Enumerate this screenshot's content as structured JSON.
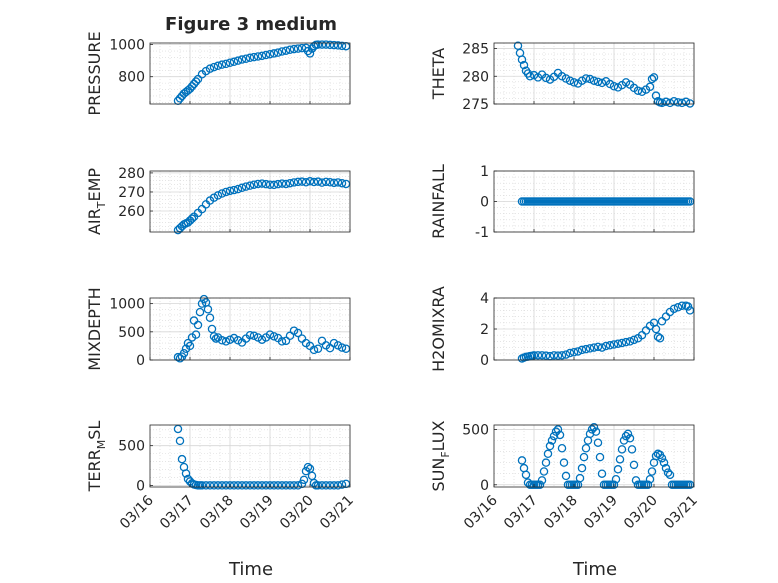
{
  "figure": {
    "title": "Figure 3 medium"
  },
  "chart_data": [
    {
      "type": "scatter",
      "ylabel": "PRESSURE",
      "ylabel_sub": "",
      "ylabel_tail": "",
      "ylim": [
        630,
        1010
      ],
      "yticks": [
        800,
        1000
      ],
      "xlim": [
        0,
        5
      ],
      "grid": true,
      "marker": "open-circle",
      "color": "#0072BD",
      "x": [
        0.7,
        0.75,
        0.8,
        0.85,
        0.9,
        0.95,
        1.0,
        1.05,
        1.1,
        1.15,
        1.2,
        1.3,
        1.4,
        1.5,
        1.6,
        1.7,
        1.8,
        1.9,
        2.0,
        2.1,
        2.2,
        2.3,
        2.4,
        2.5,
        2.6,
        2.7,
        2.8,
        2.9,
        3.0,
        3.1,
        3.2,
        3.3,
        3.4,
        3.5,
        3.6,
        3.7,
        3.8,
        3.9,
        3.95,
        4.0,
        4.05,
        4.1,
        4.15,
        4.2,
        4.3,
        4.4,
        4.5,
        4.6,
        4.7,
        4.8,
        4.9
      ],
      "y": [
        650,
        665,
        680,
        695,
        705,
        715,
        725,
        740,
        755,
        770,
        785,
        815,
        835,
        850,
        860,
        868,
        875,
        880,
        887,
        893,
        900,
        907,
        912,
        918,
        922,
        926,
        930,
        935,
        940,
        945,
        950,
        957,
        962,
        968,
        972,
        975,
        978,
        980,
        960,
        945,
        975,
        990,
        998,
        1000,
        1000,
        1000,
        998,
        997,
        995,
        992,
        990
      ]
    },
    {
      "type": "scatter",
      "ylabel": "THETA",
      "ylabel_sub": "",
      "ylabel_tail": "",
      "ylim": [
        275,
        286
      ],
      "yticks": [
        275,
        280,
        285
      ],
      "xlim": [
        0,
        5
      ],
      "grid": true,
      "marker": "open-circle",
      "color": "#0072BD",
      "x": [
        0.6,
        0.65,
        0.7,
        0.75,
        0.8,
        0.85,
        0.9,
        1.0,
        1.1,
        1.2,
        1.3,
        1.4,
        1.5,
        1.6,
        1.7,
        1.8,
        1.9,
        2.0,
        2.1,
        2.2,
        2.3,
        2.4,
        2.5,
        2.6,
        2.7,
        2.8,
        2.9,
        3.0,
        3.1,
        3.2,
        3.3,
        3.4,
        3.5,
        3.6,
        3.7,
        3.8,
        3.9,
        3.95,
        4.0,
        4.05,
        4.1,
        4.15,
        4.2,
        4.3,
        4.4,
        4.5,
        4.6,
        4.7,
        4.8,
        4.9
      ],
      "y": [
        285.5,
        284.2,
        283,
        282,
        281,
        280.5,
        280,
        280.2,
        279.8,
        280.3,
        279.7,
        279.4,
        279.9,
        280.6,
        280,
        279.6,
        279.2,
        278.9,
        278.7,
        279.2,
        279.6,
        279.5,
        279.2,
        279,
        278.8,
        279.1,
        278.6,
        278.2,
        278,
        278.4,
        278.9,
        278.5,
        277.9,
        277.4,
        277.2,
        277.6,
        278.1,
        279.5,
        279.8,
        276.5,
        275.5,
        275.3,
        275.2,
        275.4,
        275.2,
        275.5,
        275.3,
        275.2,
        275.4,
        275.1
      ]
    },
    {
      "type": "scatter",
      "ylabel": "AIR",
      "ylabel_sub": "T",
      "ylabel_tail": "EMP",
      "ylim": [
        249,
        281
      ],
      "yticks": [
        260,
        270,
        280
      ],
      "xlim": [
        0,
        5
      ],
      "grid": true,
      "marker": "open-circle",
      "color": "#0072BD",
      "x": [
        0.7,
        0.75,
        0.8,
        0.85,
        0.9,
        0.95,
        1.0,
        1.05,
        1.1,
        1.2,
        1.3,
        1.4,
        1.5,
        1.6,
        1.7,
        1.8,
        1.9,
        2.0,
        2.1,
        2.2,
        2.3,
        2.4,
        2.5,
        2.6,
        2.7,
        2.8,
        2.9,
        3.0,
        3.1,
        3.2,
        3.3,
        3.4,
        3.5,
        3.6,
        3.7,
        3.8,
        3.9,
        4.0,
        4.1,
        4.2,
        4.3,
        4.4,
        4.5,
        4.6,
        4.7,
        4.8,
        4.9
      ],
      "y": [
        250,
        251,
        252,
        253,
        253.5,
        254,
        255,
        256,
        257,
        259,
        261,
        263.5,
        265.5,
        267,
        268.2,
        269.2,
        270,
        270.6,
        271,
        271.5,
        272.2,
        272.8,
        273.3,
        273.8,
        274.2,
        274.4,
        274.1,
        273.8,
        273.7,
        274.1,
        274.4,
        274.2,
        274.6,
        275,
        275.3,
        275.4,
        275.1,
        275.6,
        275.2,
        275.4,
        274.9,
        275.3,
        275.1,
        274.8,
        275,
        274.6,
        274.2
      ]
    },
    {
      "type": "scatter",
      "ylabel": "RAINFALL",
      "ylabel_sub": "",
      "ylabel_tail": "",
      "ylim": [
        -1,
        1
      ],
      "yticks": [
        -1,
        0,
        1
      ],
      "xlim": [
        0,
        5
      ],
      "grid": true,
      "marker": "open-circle",
      "color": "#0072BD",
      "x": [
        0.7,
        0.75,
        0.8,
        0.85,
        0.9,
        0.95,
        1.0,
        1.05,
        1.1,
        1.15,
        1.2,
        1.25,
        1.3,
        1.35,
        1.4,
        1.45,
        1.5,
        1.55,
        1.6,
        1.65,
        1.7,
        1.75,
        1.8,
        1.85,
        1.9,
        1.95,
        2.0,
        2.05,
        2.1,
        2.15,
        2.2,
        2.25,
        2.3,
        2.35,
        2.4,
        2.45,
        2.5,
        2.55,
        2.6,
        2.65,
        2.7,
        2.75,
        2.8,
        2.85,
        2.9,
        2.95,
        3.0,
        3.05,
        3.1,
        3.15,
        3.2,
        3.25,
        3.3,
        3.35,
        3.4,
        3.45,
        3.5,
        3.55,
        3.6,
        3.65,
        3.7,
        3.75,
        3.8,
        3.85,
        3.9,
        3.95,
        4.0,
        4.05,
        4.1,
        4.15,
        4.2,
        4.25,
        4.3,
        4.35,
        4.4,
        4.45,
        4.5,
        4.55,
        4.6,
        4.65,
        4.7,
        4.75,
        4.8,
        4.85,
        4.9
      ],
      "y": [
        0,
        0,
        0,
        0,
        0,
        0,
        0,
        0,
        0,
        0,
        0,
        0,
        0,
        0,
        0,
        0,
        0,
        0,
        0,
        0,
        0,
        0,
        0,
        0,
        0,
        0,
        0,
        0,
        0,
        0,
        0,
        0,
        0,
        0,
        0,
        0,
        0,
        0,
        0,
        0,
        0,
        0,
        0,
        0,
        0,
        0,
        0,
        0,
        0,
        0,
        0,
        0,
        0,
        0,
        0,
        0,
        0,
        0,
        0,
        0,
        0,
        0,
        0,
        0,
        0,
        0,
        0,
        0,
        0,
        0,
        0,
        0,
        0,
        0,
        0,
        0,
        0,
        0,
        0,
        0,
        0,
        0,
        0,
        0,
        0
      ]
    },
    {
      "type": "scatter",
      "ylabel": "MIXDEPTH",
      "ylabel_sub": "",
      "ylabel_tail": "",
      "ylim": [
        0,
        1100
      ],
      "yticks": [
        0,
        500,
        1000
      ],
      "xlim": [
        0,
        5
      ],
      "grid": true,
      "marker": "open-circle",
      "color": "#0072BD",
      "x": [
        0.7,
        0.75,
        0.8,
        0.85,
        0.9,
        0.95,
        1.0,
        1.05,
        1.1,
        1.15,
        1.2,
        1.25,
        1.3,
        1.35,
        1.4,
        1.45,
        1.5,
        1.55,
        1.6,
        1.65,
        1.7,
        1.8,
        1.9,
        2.0,
        2.1,
        2.2,
        2.3,
        2.4,
        2.5,
        2.6,
        2.7,
        2.8,
        2.9,
        3.0,
        3.1,
        3.2,
        3.3,
        3.4,
        3.5,
        3.6,
        3.7,
        3.8,
        3.9,
        4.0,
        4.1,
        4.2,
        4.3,
        4.4,
        4.5,
        4.6,
        4.7,
        4.8,
        4.9
      ],
      "y": [
        50,
        30,
        60,
        120,
        200,
        300,
        250,
        400,
        700,
        450,
        620,
        850,
        1000,
        1080,
        1020,
        900,
        750,
        550,
        420,
        380,
        400,
        350,
        330,
        360,
        390,
        350,
        310,
        380,
        440,
        430,
        400,
        360,
        400,
        450,
        420,
        390,
        330,
        340,
        430,
        520,
        480,
        380,
        300,
        250,
        180,
        200,
        340,
        260,
        210,
        300,
        260,
        220,
        200
      ]
    },
    {
      "type": "scatter",
      "ylabel": "H2OMIXRA",
      "ylabel_sub": "",
      "ylabel_tail": "",
      "ylim": [
        0,
        4
      ],
      "yticks": [
        0,
        2,
        4
      ],
      "xlim": [
        0,
        5
      ],
      "grid": true,
      "marker": "open-circle",
      "color": "#0072BD",
      "x": [
        0.7,
        0.75,
        0.8,
        0.85,
        0.9,
        0.95,
        1.0,
        1.1,
        1.2,
        1.3,
        1.4,
        1.5,
        1.6,
        1.7,
        1.8,
        1.9,
        2.0,
        2.1,
        2.2,
        2.3,
        2.4,
        2.5,
        2.6,
        2.7,
        2.8,
        2.9,
        3.0,
        3.1,
        3.2,
        3.3,
        3.4,
        3.5,
        3.6,
        3.7,
        3.8,
        3.9,
        4.0,
        4.05,
        4.1,
        4.15,
        4.2,
        4.3,
        4.4,
        4.5,
        4.6,
        4.7,
        4.8,
        4.85,
        4.9
      ],
      "y": [
        0.1,
        0.15,
        0.2,
        0.22,
        0.25,
        0.27,
        0.3,
        0.3,
        0.3,
        0.28,
        0.25,
        0.3,
        0.28,
        0.3,
        0.35,
        0.45,
        0.5,
        0.55,
        0.65,
        0.7,
        0.75,
        0.8,
        0.85,
        0.8,
        0.9,
        0.95,
        1.0,
        1.05,
        1.1,
        1.15,
        1.2,
        1.3,
        1.4,
        1.6,
        1.9,
        2.2,
        2.4,
        2.0,
        1.5,
        1.4,
        2.5,
        2.8,
        3.1,
        3.3,
        3.4,
        3.5,
        3.5,
        3.45,
        3.2
      ]
    },
    {
      "type": "scatter",
      "ylabel": "TERR",
      "ylabel_sub": "M",
      "ylabel_tail": "SL",
      "ylim": [
        -20,
        760
      ],
      "yticks": [
        0,
        500
      ],
      "xlim": [
        0,
        5
      ],
      "grid": true,
      "marker": "open-circle",
      "color": "#0072BD",
      "x": [
        0.7,
        0.75,
        0.8,
        0.85,
        0.9,
        0.95,
        1.0,
        1.05,
        1.1,
        1.15,
        1.2,
        1.25,
        1.3,
        1.4,
        1.5,
        1.6,
        1.7,
        1.8,
        1.9,
        2.0,
        2.1,
        2.2,
        2.3,
        2.4,
        2.5,
        2.6,
        2.7,
        2.8,
        2.9,
        3.0,
        3.1,
        3.2,
        3.3,
        3.4,
        3.5,
        3.6,
        3.7,
        3.8,
        3.85,
        3.9,
        3.95,
        4.0,
        4.05,
        4.1,
        4.15,
        4.2,
        4.3,
        4.4,
        4.5,
        4.6,
        4.7,
        4.8,
        4.9
      ],
      "y": [
        710,
        560,
        330,
        230,
        150,
        80,
        50,
        25,
        12,
        5,
        0,
        0,
        0,
        0,
        0,
        0,
        0,
        0,
        0,
        0,
        0,
        0,
        0,
        0,
        0,
        0,
        0,
        0,
        0,
        0,
        0,
        0,
        0,
        0,
        0,
        0,
        0,
        20,
        70,
        180,
        230,
        210,
        120,
        30,
        0,
        0,
        0,
        0,
        0,
        0,
        0,
        10,
        20
      ]
    },
    {
      "type": "scatter",
      "ylabel": "SUN",
      "ylabel_sub": "F",
      "ylabel_tail": "LUX",
      "ylim": [
        -20,
        540
      ],
      "yticks": [
        0,
        500
      ],
      "xlim": [
        0,
        5
      ],
      "grid": true,
      "marker": "open-circle",
      "color": "#0072BD",
      "x": [
        0.7,
        0.75,
        0.8,
        0.85,
        0.9,
        0.95,
        1.0,
        1.05,
        1.1,
        1.15,
        1.2,
        1.25,
        1.3,
        1.35,
        1.4,
        1.45,
        1.5,
        1.55,
        1.6,
        1.65,
        1.7,
        1.75,
        1.8,
        1.85,
        1.9,
        1.95,
        2.0,
        2.05,
        2.1,
        2.15,
        2.2,
        2.25,
        2.3,
        2.35,
        2.4,
        2.45,
        2.5,
        2.55,
        2.6,
        2.65,
        2.7,
        2.75,
        2.8,
        2.85,
        2.9,
        2.95,
        3.0,
        3.05,
        3.1,
        3.15,
        3.2,
        3.25,
        3.3,
        3.35,
        3.4,
        3.45,
        3.5,
        3.55,
        3.6,
        3.65,
        3.7,
        3.75,
        3.8,
        3.85,
        3.9,
        3.95,
        4.0,
        4.05,
        4.1,
        4.15,
        4.2,
        4.25,
        4.3,
        4.35,
        4.4,
        4.45,
        4.5,
        4.55,
        4.6,
        4.65,
        4.7,
        4.75,
        4.8,
        4.85,
        4.9
      ],
      "y": [
        220,
        150,
        90,
        20,
        0,
        0,
        0,
        0,
        0,
        0,
        40,
        120,
        200,
        280,
        350,
        400,
        440,
        480,
        500,
        450,
        330,
        200,
        80,
        0,
        0,
        0,
        0,
        0,
        0,
        60,
        150,
        250,
        330,
        400,
        460,
        500,
        520,
        480,
        380,
        250,
        100,
        0,
        0,
        0,
        0,
        0,
        0,
        50,
        140,
        230,
        320,
        400,
        440,
        460,
        420,
        320,
        180,
        40,
        0,
        0,
        0,
        0,
        0,
        0,
        50,
        120,
        200,
        260,
        280,
        270,
        240,
        200,
        150,
        110,
        90,
        0,
        0,
        0,
        0,
        0,
        0,
        0,
        0,
        0,
        0
      ],
      "x_truncated_note": ""
    }
  ],
  "x_axis": {
    "ticks": [
      "03/16",
      "03/17",
      "03/18",
      "03/19",
      "03/20",
      "03/21"
    ],
    "label": "Time"
  }
}
